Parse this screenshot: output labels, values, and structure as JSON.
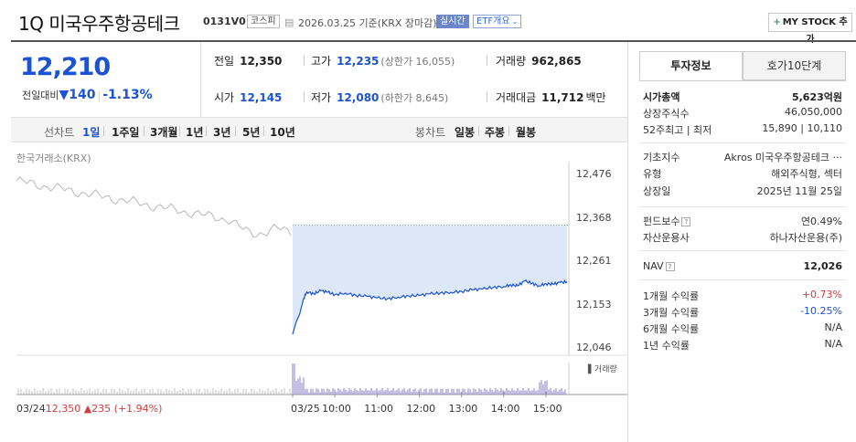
{
  "header": {
    "title": "1Q 미국우주항공테크",
    "code": "0131V0",
    "market_tag": "코스피",
    "date_text": "2026.03.25 기준(KRX 장마감)",
    "live_tag": "실시간",
    "etf_tag": "ETF개요",
    "mystock_label": "MY STOCK 추가"
  },
  "price": {
    "current": "12,210",
    "change_label": "전일대비",
    "change_amount": "140",
    "change_pct": "-1.13%"
  },
  "stats": {
    "prev_label": "전일",
    "prev_value": "12,350",
    "high_label": "고가",
    "high_value": "12,235",
    "upper_limit": "(상한가 16,055)",
    "volume_label": "거래량",
    "volume_value": "962,865",
    "open_label": "시가",
    "open_value": "12,145",
    "low_label": "저가",
    "low_value": "12,080",
    "lower_limit": "(하한가 8,645)",
    "amount_label": "거래대금",
    "amount_value": "11,712",
    "amount_unit": "백만"
  },
  "periods": {
    "line_label": "선차트",
    "items": [
      "1일",
      "1주일",
      "3개월",
      "1년",
      "3년",
      "5년",
      "10년"
    ],
    "active": "1일",
    "candle_label": "봉차트",
    "candle_items": [
      "일봉",
      "주봉",
      "월봉"
    ]
  },
  "chart": {
    "source_label": "한국거래소(KRX)",
    "volume_label": "거래량",
    "prev_date": "03/24",
    "prev_close": "12,350",
    "prev_change": "▲235 (+1.94%)"
  },
  "right": {
    "tab_active": "투자정보",
    "tab_other": "호가10단계",
    "market_cap_label": "시가총액",
    "market_cap_value": "5,623억원",
    "shares_label": "상장주식수",
    "shares_value": "46,050,000",
    "week52_label": "52주최고 | 최저",
    "week52_value": "15,890 | 10,110",
    "index_label": "기초지수",
    "index_value": "Akros 미국우주항공테크 ···",
    "type_label": "유형",
    "type_value": "해외주식형, 섹터",
    "listed_label": "상장일",
    "listed_value": "2025년 11월 25일",
    "fee_label": "펀드보수",
    "fee_value": "연0.49%",
    "manager_label": "자산운용사",
    "manager_value": "하나자산운용(주)",
    "nav_label": "NAV",
    "nav_value": "12,026",
    "r1m_label": "1개월 수익률",
    "r1m_value": "+0.73%",
    "r3m_label": "3개월 수익률",
    "r3m_value": "-10.25%",
    "r6m_label": "6개월 수익률",
    "r6m_value": "N/A",
    "r1y_label": "1년 수익률",
    "r1y_value": "N/A"
  },
  "colors": {
    "up": "#d23c3c",
    "down": "#1c53d3",
    "fill": "#dce7f8"
  },
  "chart_data": {
    "type": "line",
    "y_ticks": [
      "12,476",
      "12,368",
      "12,261",
      "12,153",
      "12,046"
    ],
    "ylim": [
      12046,
      12476
    ],
    "x_ticks": [
      "03/25",
      "10:00",
      "11:00",
      "12:00",
      "13:00",
      "14:00",
      "15:00"
    ],
    "reference_line": 12350,
    "series": [
      {
        "x": [
          "09:00",
          "09:05",
          "09:10",
          "09:15",
          "09:20",
          "09:30",
          "09:40",
          "09:50",
          "10:00",
          "10:15",
          "10:30",
          "10:45",
          "11:00",
          "11:15",
          "11:30",
          "11:45",
          "12:00",
          "12:15",
          "12:30",
          "12:45",
          "13:00",
          "13:15",
          "13:30",
          "13:45",
          "14:00",
          "14:10",
          "14:20",
          "14:30",
          "14:40",
          "14:50",
          "15:00",
          "15:10",
          "15:20",
          "15:30"
        ],
        "values": [
          12080,
          12110,
          12130,
          12165,
          12185,
          12180,
          12188,
          12184,
          12178,
          12182,
          12176,
          12174,
          12170,
          12168,
          12172,
          12175,
          12176,
          12180,
          12182,
          12184,
          12186,
          12190,
          12192,
          12196,
          12198,
          12202,
          12200,
          12212,
          12206,
          12200,
          12205,
          12204,
          12208,
          12210
        ]
      }
    ]
  }
}
